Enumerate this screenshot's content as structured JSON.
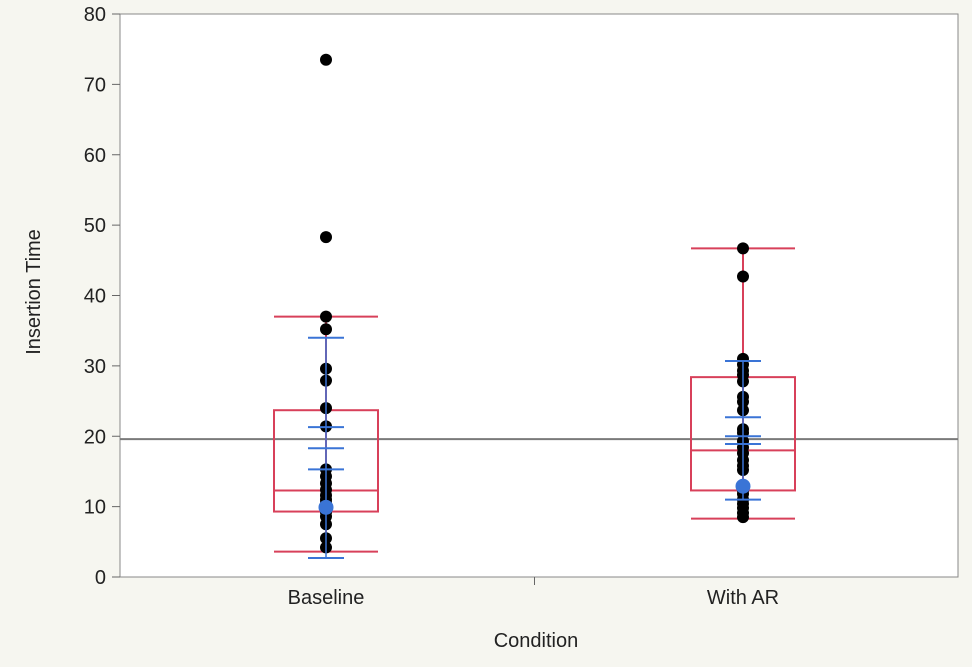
{
  "chart_data": {
    "type": "box-scatter",
    "xlabel": "Condition",
    "ylabel": "Insertion Time",
    "categories": [
      "Baseline",
      "With AR"
    ],
    "ylim": [
      0,
      80
    ],
    "yticks": [
      0,
      10,
      20,
      30,
      40,
      50,
      60,
      70,
      80
    ],
    "grand_mean": 19.6,
    "colors": {
      "box": "#d8405a",
      "ci": "#3a74d6",
      "mean_dot": "#3a74d6",
      "points": "#000000",
      "mean_line": "#7a7a7a",
      "plot_bg": "#ffffff",
      "page_bg": "#f6f6f0"
    },
    "groups": [
      {
        "category": "Baseline",
        "box": {
          "whisker_low": 3.6,
          "q1": 9.3,
          "median": 12.3,
          "q3": 23.7,
          "whisker_high": 37.0
        },
        "ci": {
          "sd_low": 2.7,
          "sd_high": 34.0,
          "ci_low": 15.3,
          "ci_high": 21.3,
          "mean_tick": 18.3
        },
        "mean": 9.9,
        "points": [
          73.5,
          48.3,
          37.0,
          35.2,
          29.6,
          27.9,
          24.0,
          21.4,
          15.3,
          14.3,
          13.3,
          12.4,
          11.6,
          11.0,
          10.5,
          9.9,
          9.2,
          8.6,
          7.5,
          5.5,
          4.2
        ]
      },
      {
        "category": "With AR",
        "box": {
          "whisker_low": 8.3,
          "q1": 12.3,
          "median": 18.0,
          "q3": 28.4,
          "whisker_high": 46.7
        },
        "ci": {
          "sd_low": 11.0,
          "sd_high": 30.7,
          "ci_low": 18.9,
          "ci_high": 22.7,
          "mean_tick": 20.0
        },
        "mean": 12.9,
        "points": [
          46.7,
          42.7,
          31.0,
          30.2,
          29.3,
          28.7,
          27.8,
          25.6,
          24.9,
          23.7,
          21.0,
          20.5,
          19.3,
          18.4,
          17.6,
          16.6,
          15.8,
          15.2,
          12.9,
          12.3,
          11.8,
          11.0,
          10.4,
          9.8,
          9.1,
          8.5
        ]
      }
    ]
  }
}
